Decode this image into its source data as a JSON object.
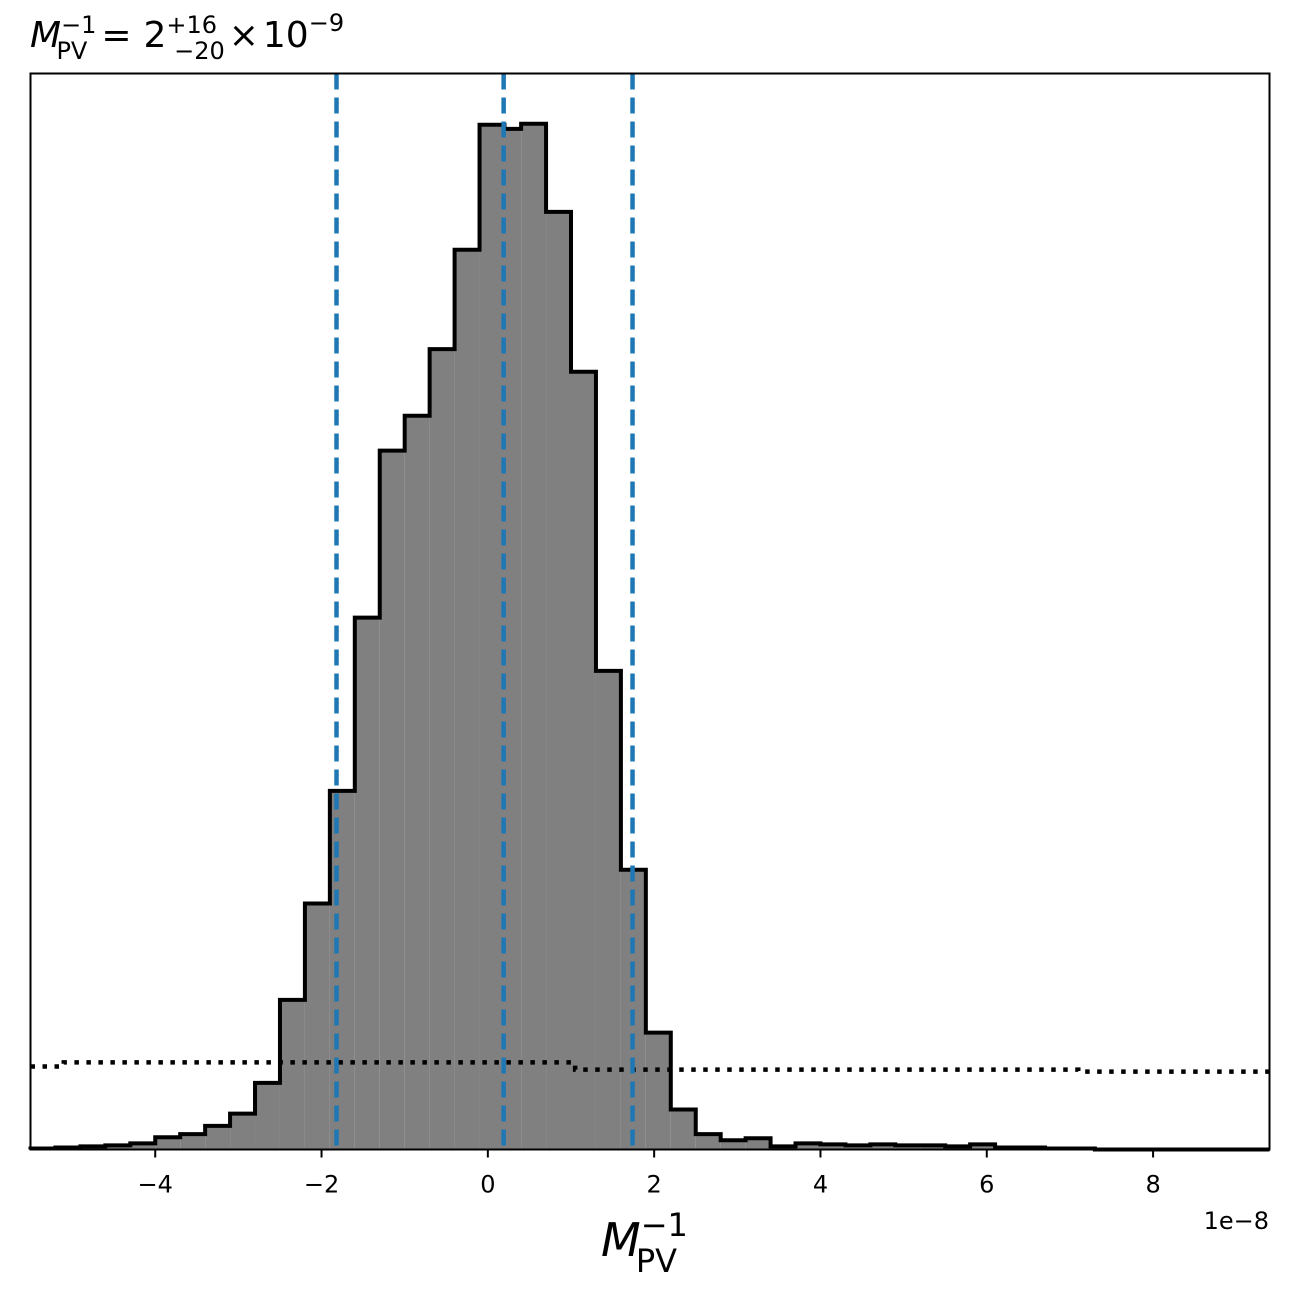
{
  "chart_data": {
    "type": "histogram",
    "title": {
      "symbol": "M",
      "symbol_sub": "PV",
      "symbol_sup": "−1",
      "equals": "=",
      "value": "2",
      "err_plus": "+16",
      "err_minus": "−20",
      "times": "×",
      "base": "10",
      "exponent": "−9"
    },
    "xlabel": {
      "symbol": "M",
      "sub": "PV",
      "sup": "−1"
    },
    "offset_label": "1e−8",
    "xlim": [
      -5.5,
      9.4
    ],
    "ylim": [
      0,
      1.05
    ],
    "x_ticks": [
      -4,
      -2,
      0,
      2,
      4,
      6,
      8
    ],
    "x_tick_labels": [
      "−4",
      "−2",
      "0",
      "2",
      "4",
      "6",
      "8"
    ],
    "y_ticks_shown": false,
    "bin_edges": [
      -5.5,
      -5.2,
      -4.9,
      -4.6,
      -4.3,
      -4.0,
      -3.7,
      -3.4,
      -3.1,
      -2.8,
      -2.5,
      -2.2,
      -1.9,
      -1.6,
      -1.3,
      -1.0,
      -0.7,
      -0.4,
      -0.1,
      0.2,
      0.4,
      0.7,
      1.0,
      1.3,
      1.6,
      1.9,
      2.2,
      2.5,
      2.8,
      3.1,
      3.4,
      3.7,
      4.0,
      4.3,
      4.6,
      4.9,
      5.2,
      5.5,
      5.8,
      6.1,
      6.4,
      6.7,
      7.0,
      7.3,
      7.6,
      7.9,
      8.2,
      8.5,
      8.8,
      9.1,
      9.4
    ],
    "counts": [
      0.001,
      0.002,
      0.003,
      0.004,
      0.006,
      0.012,
      0.015,
      0.023,
      0.035,
      0.065,
      0.146,
      0.24,
      0.35,
      0.519,
      0.682,
      0.716,
      0.781,
      0.878,
      1.0,
      0.996,
      1.001,
      0.915,
      0.759,
      0.467,
      0.273,
      0.114,
      0.039,
      0.015,
      0.009,
      0.011,
      0.003,
      0.006,
      0.005,
      0.004,
      0.005,
      0.004,
      0.004,
      0.003,
      0.005,
      0.002,
      0.002,
      0.001,
      0.001,
      0.0,
      0.0,
      0.0,
      0.0,
      0.0,
      0.0,
      0.0
    ],
    "hist_fill": "#808080",
    "hist_edge": "#000000",
    "quantile_lines": [
      -1.82,
      0.19,
      1.74
    ],
    "quantile_color": "#1f77b4",
    "prior": {
      "style": "dotted",
      "color": "#000000",
      "steps": [
        {
          "x0": -5.5,
          "x1": -5.1,
          "y": 0.081
        },
        {
          "x0": -5.1,
          "x1": 1.05,
          "y": 0.085
        },
        {
          "x0": 1.05,
          "x1": 7.1,
          "y": 0.078
        },
        {
          "x0": 7.1,
          "x1": 9.4,
          "y": 0.076
        }
      ]
    }
  }
}
